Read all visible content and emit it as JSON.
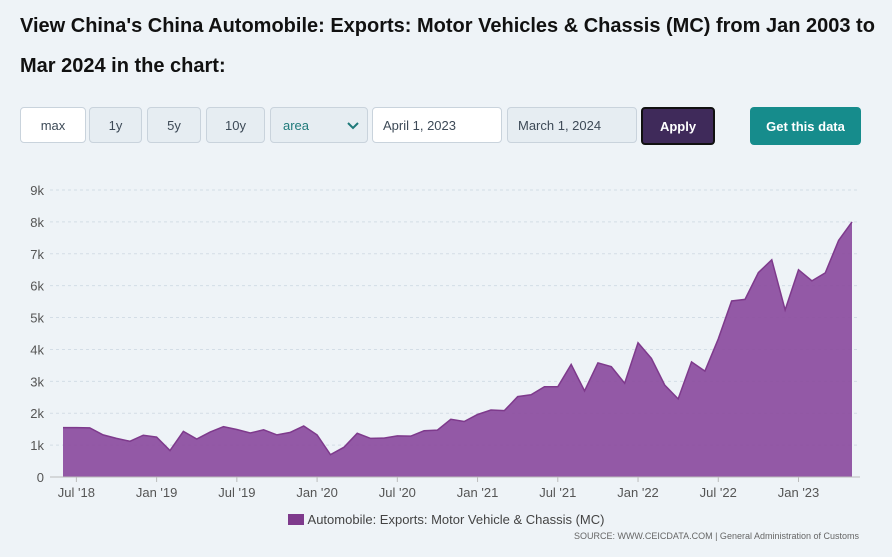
{
  "title": "View China's China Automobile: Exports: Motor Vehicles & Chassis (MC) from Jan 2003 to Mar 2024 in the chart:",
  "controls": {
    "range_buttons": [
      "max",
      "1y",
      "5y",
      "10y"
    ],
    "chart_type_selected": "area",
    "start_date": "April 1, 2023",
    "end_date": "March 1, 2024",
    "apply_label": "Apply",
    "get_data_label": "Get this data"
  },
  "colors": {
    "area_fill": "#8b4c9e",
    "area_stroke": "#7e3a8c",
    "apply_bg": "#3f2a5a",
    "get_data_bg": "#168c8c"
  },
  "chart_data": {
    "type": "area",
    "ylim": [
      0,
      9000
    ],
    "y_tick_labels": [
      "0",
      "1k",
      "2k",
      "3k",
      "4k",
      "5k",
      "6k",
      "7k",
      "8k",
      "9k"
    ],
    "y_tick_values": [
      0,
      1000,
      2000,
      3000,
      4000,
      5000,
      6000,
      7000,
      8000,
      9000
    ],
    "x_tick_labels": [
      "Jul '18",
      "Jan '19",
      "Jul '19",
      "Jan '20",
      "Jul '20",
      "Jan '21",
      "Jul '21",
      "Jan '22",
      "Jul '22",
      "Jan '23"
    ],
    "x_tick_dates": [
      "2018-07",
      "2019-01",
      "2019-07",
      "2020-01",
      "2020-07",
      "2021-01",
      "2021-07",
      "2022-01",
      "2022-07",
      "2023-01"
    ],
    "grid": true,
    "legend_position": "bottom",
    "series": [
      {
        "name": "Automobile: Exports: Motor Vehicle & Chassis (MC)",
        "points": [
          [
            "2018-06",
            1550
          ],
          [
            "2018-07",
            1550
          ],
          [
            "2018-08",
            1540
          ],
          [
            "2018-09",
            1320
          ],
          [
            "2018-10",
            1210
          ],
          [
            "2018-11",
            1120
          ],
          [
            "2018-12",
            1310
          ],
          [
            "2019-01",
            1250
          ],
          [
            "2019-02",
            830
          ],
          [
            "2019-03",
            1430
          ],
          [
            "2019-04",
            1190
          ],
          [
            "2019-05",
            1410
          ],
          [
            "2019-06",
            1580
          ],
          [
            "2019-07",
            1490
          ],
          [
            "2019-08",
            1380
          ],
          [
            "2019-09",
            1480
          ],
          [
            "2019-10",
            1320
          ],
          [
            "2019-11",
            1400
          ],
          [
            "2019-12",
            1600
          ],
          [
            "2020-01",
            1320
          ],
          [
            "2020-02",
            700
          ],
          [
            "2020-03",
            930
          ],
          [
            "2020-04",
            1370
          ],
          [
            "2020-05",
            1210
          ],
          [
            "2020-06",
            1220
          ],
          [
            "2020-07",
            1290
          ],
          [
            "2020-08",
            1280
          ],
          [
            "2020-09",
            1450
          ],
          [
            "2020-10",
            1470
          ],
          [
            "2020-11",
            1810
          ],
          [
            "2020-12",
            1740
          ],
          [
            "2021-01",
            1960
          ],
          [
            "2021-02",
            2100
          ],
          [
            "2021-03",
            2080
          ],
          [
            "2021-04",
            2520
          ],
          [
            "2021-05",
            2580
          ],
          [
            "2021-06",
            2830
          ],
          [
            "2021-07",
            2830
          ],
          [
            "2021-08",
            3530
          ],
          [
            "2021-09",
            2700
          ],
          [
            "2021-10",
            3580
          ],
          [
            "2021-11",
            3460
          ],
          [
            "2021-12",
            2940
          ],
          [
            "2022-01",
            4210
          ],
          [
            "2022-02",
            3720
          ],
          [
            "2022-03",
            2880
          ],
          [
            "2022-04",
            2450
          ],
          [
            "2022-05",
            3610
          ],
          [
            "2022-06",
            3320
          ],
          [
            "2022-07",
            4330
          ],
          [
            "2022-08",
            5520
          ],
          [
            "2022-09",
            5570
          ],
          [
            "2022-10",
            6410
          ],
          [
            "2022-11",
            6810
          ],
          [
            "2022-12",
            5240
          ],
          [
            "2023-01",
            6500
          ],
          [
            "2023-02",
            6150
          ],
          [
            "2023-03",
            6400
          ],
          [
            "2023-04",
            7420
          ],
          [
            "2023-05",
            8000
          ]
        ]
      }
    ]
  },
  "source": "SOURCE: WWW.CEICDATA.COM | General Administration of Customs"
}
